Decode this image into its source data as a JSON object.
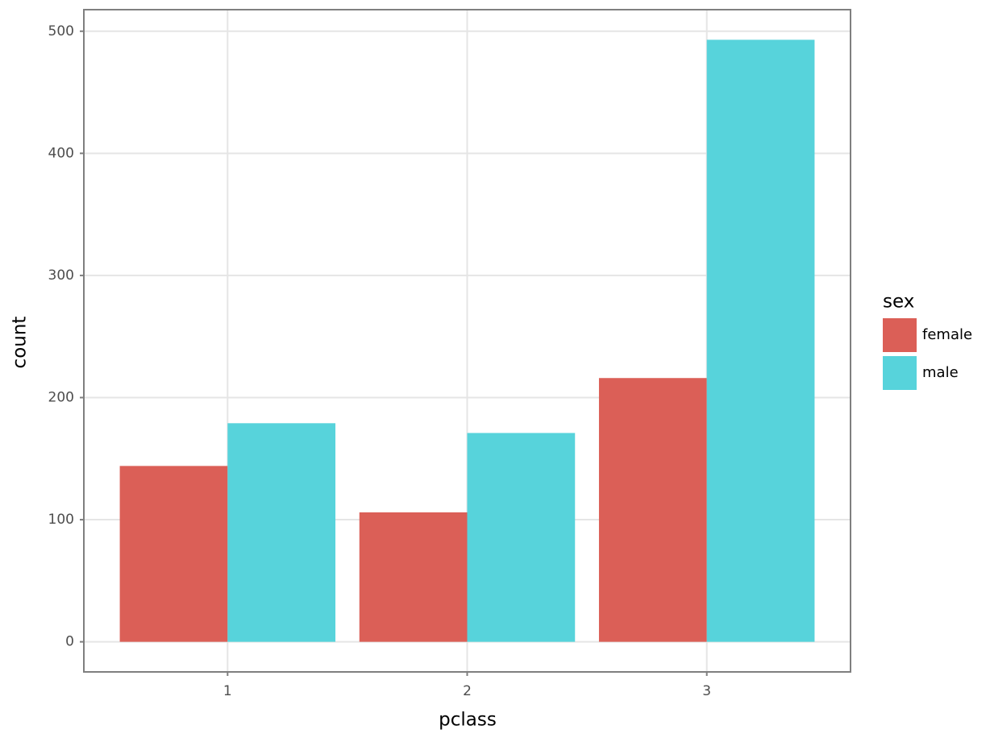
{
  "chart_data": {
    "type": "bar",
    "x_label": "pclass",
    "y_label": "count",
    "categories": [
      "1",
      "2",
      "3"
    ],
    "series": [
      {
        "name": "female",
        "color": "#db5f57",
        "values": [
          144,
          106,
          216
        ]
      },
      {
        "name": "male",
        "color": "#57d3db",
        "values": [
          179,
          171,
          493
        ]
      }
    ],
    "legend_title": "sex",
    "ylim": [
      -24.65,
      517.65
    ],
    "yticks": [
      0,
      100,
      200,
      300,
      400,
      500
    ],
    "grid": true
  }
}
